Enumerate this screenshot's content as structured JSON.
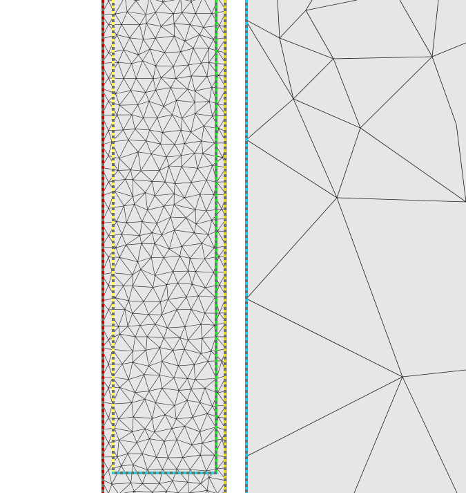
{
  "diagram": {
    "type": "triangular-mesh-view",
    "background_color": "#ffffff",
    "mesh_fill_color": "#e6e6e6",
    "mesh_edge_color": "#1a1a1a",
    "dash_gray_color": "#6e6e6e",
    "regions": [
      {
        "name": "fine-mesh-strip",
        "boundaries": [
          {
            "name": "left-outer-boundary",
            "color": "#b40000"
          },
          {
            "name": "left-inner-boundary",
            "color": "#ffff55"
          },
          {
            "name": "right-inner-boundary",
            "color": "#22dd22"
          },
          {
            "name": "right-outer-boundary",
            "color": "#e8d42a"
          },
          {
            "name": "bottom-inner-boundary",
            "color": "#22cccc"
          }
        ]
      },
      {
        "name": "coarse-mesh-region",
        "boundaries": [
          {
            "name": "left-boundary",
            "color": "#22ccee"
          }
        ]
      }
    ]
  }
}
